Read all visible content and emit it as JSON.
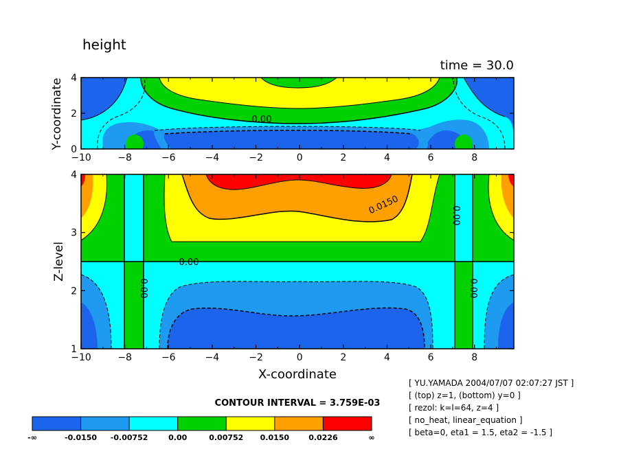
{
  "chart_data": {
    "type": "heatmap",
    "variable_title": "height",
    "time_label": "time = 30.0",
    "contour_interval_label": "CONTOUR INTERVAL = 3.759E-03",
    "colors": [
      "#1c64ec",
      "#1e9bf0",
      "#00ffff",
      "#00d200",
      "#ffff00",
      "#ffa000",
      "#ff0000"
    ],
    "colorbar_labels": [
      "-∞",
      "-0.0150",
      "-0.00752",
      "0.00",
      "0.00752",
      "0.0150",
      "0.0226",
      "∞"
    ],
    "panels": [
      {
        "name": "top",
        "ylabel": "Y-coordinate",
        "xlim": [
          -10,
          9.8
        ],
        "ylim": [
          0,
          4
        ],
        "yticks": [
          "0",
          "2",
          "4"
        ],
        "xticks": [
          "-10",
          "-8",
          "-6",
          "-4",
          "-2",
          "0",
          "2",
          "4",
          "6",
          "8"
        ],
        "contour_labels": [
          "0.00"
        ]
      },
      {
        "name": "bottom",
        "ylabel": "Z-level",
        "xlabel": "X-coordinate",
        "xlim": [
          -10,
          9.8
        ],
        "ylim": [
          1,
          4
        ],
        "yticks": [
          "1",
          "2",
          "3",
          "4"
        ],
        "xticks": [
          "-10",
          "-8",
          "-6",
          "-4",
          "-2",
          "0",
          "2",
          "4",
          "6",
          "8"
        ],
        "contour_labels": [
          "0.00",
          "0.0150",
          "0.00",
          "0.00",
          "0.00"
        ]
      }
    ],
    "info_lines": [
      "[ YU.YAMADA 2004/07/07 02:07:27 JST ]",
      "[ (top) z=1, (bottom) y=0 ]",
      "[ rezol: k=l=64, z=4 ]",
      "[ no_heat, linear_equation ]",
      "[ beta=0, eta1 = 1.5, eta2 = -1.5 ]"
    ]
  }
}
